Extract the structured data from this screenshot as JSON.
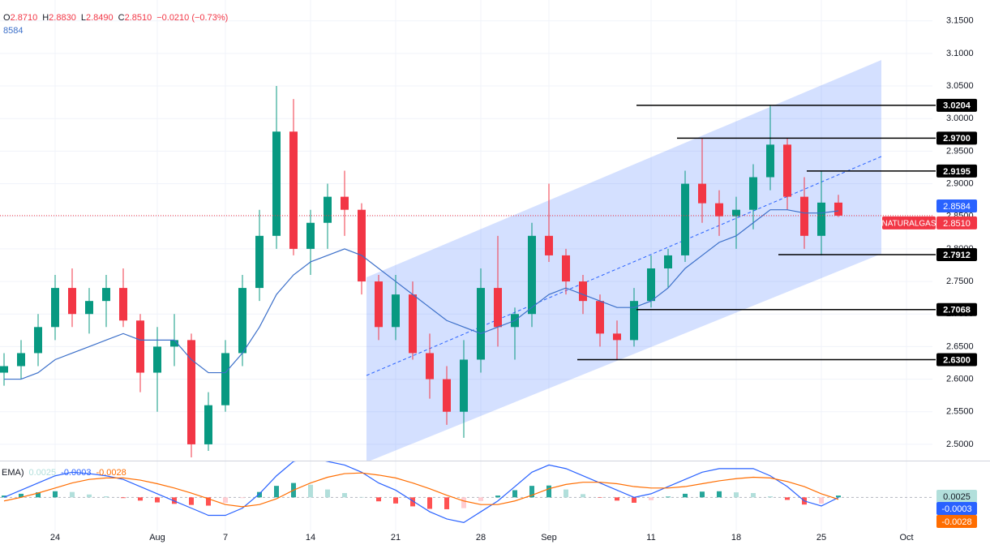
{
  "chart_data": {
    "type": "candlestick",
    "header": {
      "ohlc": [
        {
          "key": "O",
          "value": "2.8710"
        },
        {
          "key": "H",
          "value": "2.8830"
        },
        {
          "key": "L",
          "value": "2.8490"
        },
        {
          "key": "C",
          "value": "2.8510"
        }
      ],
      "change": "−0.0210 (−0.73%)",
      "ma_legend": "8584",
      "macd_legend": "EMA)"
    },
    "categories": [
      null,
      null,
      null,
      "24",
      null,
      null,
      null,
      null,
      null,
      "Aug",
      null,
      null,
      null,
      "7",
      null,
      null,
      null,
      null,
      "14",
      null,
      null,
      null,
      null,
      "21",
      null,
      null,
      null,
      null,
      "28",
      null,
      null,
      null,
      "Sep",
      null,
      null,
      null,
      null,
      null,
      "11",
      null,
      null,
      null,
      null,
      "18",
      null,
      null,
      null,
      null,
      "25",
      null,
      null,
      null,
      null,
      "Oct"
    ],
    "candles": [
      [
        2.61,
        2.64,
        2.59,
        2.62
      ],
      [
        2.62,
        2.66,
        2.6,
        2.64
      ],
      [
        2.64,
        2.7,
        2.62,
        2.68
      ],
      [
        2.68,
        2.76,
        2.66,
        2.74
      ],
      [
        2.74,
        2.77,
        2.68,
        2.7
      ],
      [
        2.7,
        2.74,
        2.67,
        2.72
      ],
      [
        2.72,
        2.76,
        2.68,
        2.74
      ],
      [
        2.74,
        2.77,
        2.68,
        2.69
      ],
      [
        2.69,
        2.7,
        2.58,
        2.61
      ],
      [
        2.61,
        2.68,
        2.55,
        2.65
      ],
      [
        2.65,
        2.7,
        2.62,
        2.66
      ],
      [
        2.66,
        2.67,
        2.48,
        2.5
      ],
      [
        2.5,
        2.58,
        2.49,
        2.56
      ],
      [
        2.56,
        2.66,
        2.55,
        2.64
      ],
      [
        2.64,
        2.76,
        2.62,
        2.74
      ],
      [
        2.74,
        2.86,
        2.72,
        2.82
      ],
      [
        2.82,
        3.05,
        2.8,
        2.98
      ],
      [
        2.98,
        3.03,
        2.79,
        2.8
      ],
      [
        2.8,
        2.86,
        2.76,
        2.84
      ],
      [
        2.84,
        2.9,
        2.8,
        2.88
      ],
      [
        2.88,
        2.92,
        2.82,
        2.86
      ],
      [
        2.86,
        2.87,
        2.73,
        2.75
      ],
      [
        2.75,
        2.76,
        2.66,
        2.68
      ],
      [
        2.68,
        2.76,
        2.66,
        2.73
      ],
      [
        2.73,
        2.75,
        2.63,
        2.64
      ],
      [
        2.64,
        2.67,
        2.57,
        2.6
      ],
      [
        2.6,
        2.62,
        2.53,
        2.55
      ],
      [
        2.55,
        2.66,
        2.51,
        2.63
      ],
      [
        2.63,
        2.77,
        2.61,
        2.74
      ],
      [
        2.74,
        2.82,
        2.65,
        2.68
      ],
      [
        2.68,
        2.71,
        2.63,
        2.7
      ],
      [
        2.7,
        2.84,
        2.68,
        2.82
      ],
      [
        2.82,
        2.9,
        2.78,
        2.79
      ],
      [
        2.79,
        2.8,
        2.73,
        2.75
      ],
      [
        2.75,
        2.76,
        2.7,
        2.72
      ],
      [
        2.72,
        2.73,
        2.65,
        2.67
      ],
      [
        2.67,
        2.69,
        2.63,
        2.66
      ],
      [
        2.66,
        2.74,
        2.65,
        2.72
      ],
      [
        2.72,
        2.79,
        2.71,
        2.77
      ],
      [
        2.77,
        2.8,
        2.74,
        2.79
      ],
      [
        2.79,
        2.92,
        2.78,
        2.9
      ],
      [
        2.9,
        2.97,
        2.84,
        2.87
      ],
      [
        2.87,
        2.89,
        2.82,
        2.85
      ],
      [
        2.85,
        2.88,
        2.8,
        2.86
      ],
      [
        2.86,
        2.93,
        2.83,
        2.91
      ],
      [
        2.91,
        3.02,
        2.89,
        2.96
      ],
      [
        2.96,
        2.97,
        2.86,
        2.88
      ],
      [
        2.88,
        2.91,
        2.8,
        2.82
      ],
      [
        2.82,
        2.92,
        2.79,
        2.871
      ],
      [
        2.871,
        2.883,
        2.849,
        2.851
      ],
      null,
      null,
      null,
      null
    ],
    "up_color": "#089981",
    "down_color": "#f23645",
    "ylim": [
      2.475,
      3.182
    ],
    "yticks": [
      {
        "value": 3.15,
        "label": "3.1500"
      },
      {
        "value": 3.1,
        "label": "3.1000"
      },
      {
        "value": 3.05,
        "label": "3.0500"
      },
      {
        "value": 3.0,
        "label": "3.0000"
      },
      {
        "value": 2.95,
        "label": "2.9500"
      },
      {
        "value": 2.9,
        "label": "2.9000"
      },
      {
        "value": 2.85,
        "label": "2.8500"
      },
      {
        "value": 2.8,
        "label": "2.8000"
      },
      {
        "value": 2.75,
        "label": "2.7500"
      },
      {
        "value": 2.7,
        "label": "2.7000"
      },
      {
        "value": 2.65,
        "label": "2.6500"
      },
      {
        "value": 2.6,
        "label": "2.6000"
      },
      {
        "value": 2.55,
        "label": "2.5500"
      },
      {
        "value": 2.5,
        "label": "2.5000"
      }
    ],
    "grid": true,
    "ma": {
      "color": "#3b6fc9",
      "values": [
        2.6,
        2.6,
        2.61,
        2.63,
        2.64,
        2.65,
        2.66,
        2.67,
        2.66,
        2.66,
        2.66,
        2.63,
        2.61,
        2.61,
        2.64,
        2.68,
        2.73,
        2.76,
        2.78,
        2.79,
        2.8,
        2.79,
        2.77,
        2.75,
        2.73,
        2.71,
        2.69,
        2.68,
        2.67,
        2.68,
        2.69,
        2.71,
        2.73,
        2.74,
        2.73,
        2.72,
        2.71,
        2.71,
        2.72,
        2.74,
        2.77,
        2.79,
        2.81,
        2.82,
        2.84,
        2.86,
        2.86,
        2.855,
        2.855,
        2.8584,
        null,
        null,
        null,
        null
      ]
    },
    "levels": [
      3.0204,
      {
        "value": 2.97,
        "label": "2.9700"
      },
      2.9195,
      2.7912,
      2.7068,
      {
        "value": 2.63,
        "label": "2.6300"
      }
    ],
    "level_color": "#000000",
    "last_price_label": "2.8510",
    "symbol": "NATURALGAS",
    "macd": {
      "ylim": [
        -0.047,
        0.05
      ],
      "macd": {
        "color": "#2962ff",
        "values": [
          0.0,
          0.01,
          0.02,
          0.03,
          0.035,
          0.033,
          0.03,
          0.025,
          0.015,
          0.005,
          -0.005,
          -0.015,
          -0.025,
          -0.025,
          -0.015,
          0.005,
          0.03,
          0.05,
          0.055,
          0.05,
          0.045,
          0.035,
          0.02,
          0.01,
          -0.005,
          -0.02,
          -0.03,
          -0.035,
          -0.02,
          -0.005,
          0.015,
          0.035,
          0.045,
          0.04,
          0.03,
          0.02,
          0.01,
          0.0,
          0.005,
          0.015,
          0.025,
          0.035,
          0.04,
          0.04,
          0.04,
          0.03,
          0.015,
          -0.005,
          -0.012,
          -0.0003,
          null,
          null,
          null,
          null
        ]
      },
      "signal": {
        "color": "#ff6d00",
        "values": [
          -0.005,
          0.0,
          0.006,
          0.013,
          0.02,
          0.025,
          0.027,
          0.027,
          0.024,
          0.019,
          0.013,
          0.006,
          -0.002,
          -0.01,
          -0.013,
          -0.01,
          -0.002,
          0.01,
          0.02,
          0.028,
          0.033,
          0.034,
          0.031,
          0.027,
          0.02,
          0.012,
          0.003,
          -0.005,
          -0.01,
          -0.01,
          -0.005,
          0.003,
          0.012,
          0.018,
          0.021,
          0.021,
          0.019,
          0.015,
          0.013,
          0.013,
          0.015,
          0.019,
          0.023,
          0.026,
          0.028,
          0.027,
          0.022,
          0.015,
          0.005,
          -0.0028,
          null,
          null,
          null,
          null
        ]
      },
      "histogram": {
        "colors": {
          "up_grow": "#26a69a",
          "up_fall": "#b2dfdb",
          "down_grow": "#ff5252",
          "down_fall": "#ffcdd2"
        },
        "values": [
          0.0025,
          0.005,
          0.007,
          0.0085,
          0.0075,
          0.004,
          0.0015,
          -0.001,
          -0.0045,
          -0.007,
          -0.009,
          -0.0105,
          -0.0115,
          -0.0075,
          -0.001,
          0.0075,
          0.016,
          0.02,
          0.0175,
          0.011,
          0.006,
          0.0005,
          -0.0055,
          -0.0085,
          -0.0125,
          -0.016,
          -0.0165,
          -0.015,
          -0.005,
          0.0025,
          0.01,
          0.016,
          0.0165,
          0.011,
          0.0045,
          -0.0005,
          -0.0045,
          -0.0075,
          -0.004,
          0.001,
          0.005,
          0.008,
          0.0085,
          0.007,
          0.006,
          0.0015,
          -0.0035,
          -0.01,
          -0.0085,
          0.0025,
          null,
          null,
          null,
          null
        ]
      }
    }
  }
}
